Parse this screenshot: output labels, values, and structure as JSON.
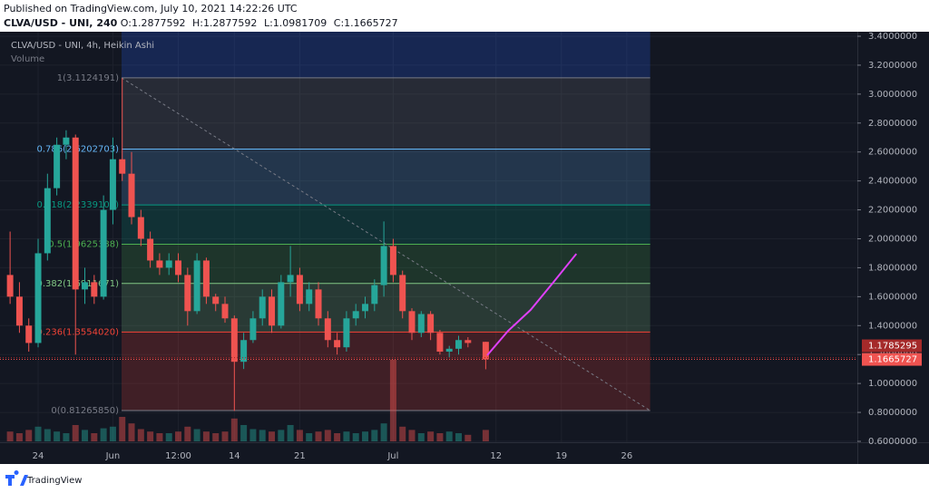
{
  "header": {
    "published": "Published on TradingView.com, July 10, 2021 14:22:26 UTC",
    "symbol": "CLVA/USD - UNI, 240",
    "ohlc_labels": [
      "O:",
      "H:",
      "L:",
      "C:"
    ]
  },
  "footer": {
    "brand": "TradingView"
  },
  "chart_data": {
    "type": "candlestick",
    "title": "CLVA/USD - UNI, 4h, Heikin Ashi",
    "volume_label": "Volume",
    "x": [
      -3,
      -2,
      -1,
      0,
      1,
      2,
      3,
      4,
      5,
      6,
      7,
      8,
      9,
      10,
      11,
      12,
      13,
      14,
      15,
      16,
      17,
      18,
      19,
      20,
      21,
      22,
      23,
      24,
      25,
      26,
      27,
      28,
      29,
      30,
      31,
      32,
      33,
      34,
      35,
      36,
      37,
      38,
      39,
      40,
      41,
      42,
      43,
      44,
      45,
      46,
      47.9
    ],
    "open": [
      1.75,
      1.6,
      1.4,
      1.28,
      1.9,
      2.35,
      2.65,
      2.7,
      1.65,
      1.7,
      1.6,
      2.2,
      2.55,
      2.45,
      2.15,
      2.0,
      1.85,
      1.8,
      1.85,
      1.75,
      1.5,
      1.85,
      1.6,
      1.55,
      1.45,
      1.15,
      1.3,
      1.45,
      1.6,
      1.4,
      1.7,
      1.75,
      1.55,
      1.65,
      1.45,
      1.3,
      1.25,
      1.45,
      1.5,
      1.55,
      1.68,
      1.95,
      1.75,
      1.5,
      1.35,
      1.48,
      1.35,
      1.22,
      1.24,
      1.3,
      1.2877592
    ],
    "high": [
      2.05,
      1.7,
      1.45,
      2.0,
      2.45,
      2.7,
      2.75,
      2.72,
      1.8,
      1.75,
      2.3,
      2.7,
      3.11,
      2.6,
      2.2,
      2.05,
      1.9,
      1.9,
      1.9,
      1.8,
      1.9,
      1.87,
      1.62,
      1.6,
      1.47,
      1.35,
      1.5,
      1.65,
      1.65,
      1.75,
      1.95,
      1.8,
      1.7,
      1.7,
      1.5,
      1.35,
      1.5,
      1.55,
      1.6,
      1.72,
      2.12,
      2.0,
      1.78,
      1.52,
      1.5,
      1.5,
      1.37,
      1.26,
      1.33,
      1.32,
      1.2877592
    ],
    "low": [
      1.55,
      1.35,
      1.22,
      1.25,
      1.85,
      2.3,
      2.55,
      1.2,
      1.55,
      1.55,
      1.58,
      2.1,
      2.4,
      2.1,
      1.95,
      1.8,
      1.75,
      1.75,
      1.7,
      1.4,
      1.48,
      1.55,
      1.5,
      1.42,
      0.81,
      1.1,
      1.28,
      1.4,
      1.35,
      1.38,
      1.6,
      1.5,
      1.5,
      1.4,
      1.25,
      1.2,
      1.22,
      1.4,
      1.45,
      1.5,
      1.6,
      1.7,
      1.45,
      1.3,
      1.32,
      1.3,
      1.2,
      1.18,
      1.2,
      1.25,
      1.0981709
    ],
    "close": [
      1.6,
      1.4,
      1.28,
      1.9,
      2.35,
      2.65,
      2.7,
      1.65,
      1.7,
      1.6,
      2.2,
      2.55,
      2.45,
      2.15,
      2.0,
      1.85,
      1.8,
      1.85,
      1.75,
      1.5,
      1.85,
      1.6,
      1.55,
      1.45,
      1.15,
      1.3,
      1.45,
      1.6,
      1.4,
      1.7,
      1.75,
      1.55,
      1.65,
      1.45,
      1.3,
      1.25,
      1.45,
      1.5,
      1.55,
      1.68,
      1.95,
      1.75,
      1.5,
      1.35,
      1.48,
      1.35,
      1.22,
      1.24,
      1.3,
      1.28,
      1.1665727
    ],
    "volume": [
      12,
      10,
      14,
      18,
      15,
      12,
      10,
      20,
      14,
      10,
      16,
      18,
      30,
      22,
      15,
      12,
      10,
      10,
      12,
      18,
      15,
      12,
      10,
      12,
      28,
      20,
      15,
      14,
      12,
      14,
      20,
      14,
      10,
      12,
      14,
      10,
      12,
      10,
      12,
      14,
      22,
      100,
      18,
      14,
      10,
      12,
      10,
      12,
      10,
      8,
      14
    ],
    "up_color": "#26a69a",
    "down_color": "#ef5350",
    "xlim": [
      -4.08,
      87.67
    ],
    "xticks": [
      {
        "value": 0,
        "label": "24"
      },
      {
        "value": 8,
        "label": "Jun"
      },
      {
        "value": 15,
        "label": "12:00"
      },
      {
        "value": 21,
        "label": "14"
      },
      {
        "value": 28,
        "label": "21"
      },
      {
        "value": 38,
        "label": "Jul"
      },
      {
        "value": 49,
        "label": "12"
      },
      {
        "value": 56,
        "label": "19"
      },
      {
        "value": 63,
        "label": "26"
      }
    ],
    "ylim": [
      0.6,
      3.4
    ],
    "yticks": [
      {
        "value": 0.6,
        "label": "0.6000000"
      },
      {
        "value": 0.8,
        "label": "0.8000000"
      },
      {
        "value": 1.0,
        "label": "1.0000000"
      },
      {
        "value": 1.2,
        "label": "1.2000000"
      },
      {
        "value": 1.4,
        "label": "1.4000000"
      },
      {
        "value": 1.6,
        "label": "1.6000000"
      },
      {
        "value": 1.8,
        "label": "1.8000000"
      },
      {
        "value": 2.0,
        "label": "2.0000000"
      },
      {
        "value": 2.2,
        "label": "2.2000000"
      },
      {
        "value": 2.4,
        "label": "2.4000000"
      },
      {
        "value": 2.6,
        "label": "2.6000000"
      },
      {
        "value": 2.8,
        "label": "2.8000000"
      },
      {
        "value": 3.0,
        "label": "3.0000000"
      },
      {
        "value": 3.2,
        "label": "3.2000000"
      },
      {
        "value": 3.4,
        "label": "3.4000000"
      }
    ],
    "grid": true,
    "fib": {
      "x_range": [
        8.93,
        65.5
      ],
      "top_zone_color": "#2962ff",
      "levels": [
        {
          "value": 3.1124191,
          "label": "1(3.1124191)",
          "color": "#787b86"
        },
        {
          "value": 2.6202703,
          "label": "0.786(2.6202703)",
          "color": "#64b5f6"
        },
        {
          "value": 2.2339108,
          "label": "0.618(2.2339108)",
          "color": "#089981"
        },
        {
          "value": 1.9625388,
          "label": "0.5(1.9625388)",
          "color": "#4caf50"
        },
        {
          "value": 1.6911671,
          "label": "0.382(1.6911671)",
          "color": "#81c784"
        },
        {
          "value": 1.355402,
          "label": "0.236(1.3554020)",
          "color": "#f44336"
        },
        {
          "value": 0.8126585,
          "label": "0(0.81265850)",
          "color": "#787b86"
        }
      ]
    },
    "projection": {
      "x": [
        48.06,
        50.3,
        52.7,
        55.1,
        57.6
      ],
      "y": [
        1.195,
        1.364,
        1.508,
        1.696,
        1.896
      ],
      "color": "#e040fb"
    },
    "price_tags": [
      {
        "value": 1.1785295,
        "color": "#a52a2a"
      }
    ]
  }
}
